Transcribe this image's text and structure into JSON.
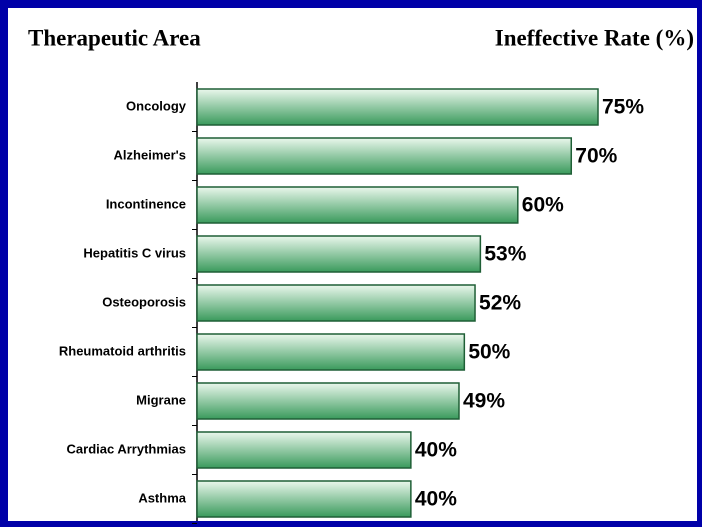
{
  "chart_data": {
    "type": "bar",
    "orientation": "horizontal",
    "header_left": "Therapeutic Area",
    "header_right": "Ineffective Rate (%)",
    "categories": [
      "Oncology",
      "Alzheimer's",
      "Incontinence",
      "Hepatitis C virus",
      "Osteoporosis",
      "Rheumatoid arthritis",
      "Migrane",
      "Cardiac Arrythmias",
      "Asthma"
    ],
    "values": [
      75,
      70,
      60,
      53,
      52,
      50,
      49,
      40,
      40
    ],
    "value_labels": [
      "75%",
      "70%",
      "60%",
      "53%",
      "52%",
      "50%",
      "49%",
      "40%",
      "40%"
    ],
    "color": "#3a9a5c"
  }
}
